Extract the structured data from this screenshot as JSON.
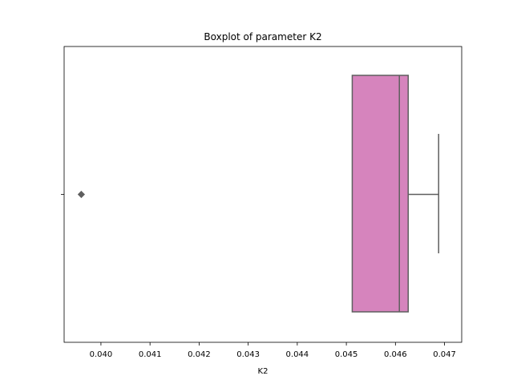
{
  "chart_data": {
    "type": "boxplot",
    "title": "Boxplot of parameter K2",
    "xlabel": "K2",
    "ylabel": "",
    "orientation": "horizontal",
    "xlim": [
      0.03925,
      0.04735
    ],
    "xticks": [
      0.04,
      0.041,
      0.042,
      0.043,
      0.044,
      0.045,
      0.046,
      0.047
    ],
    "xtick_labels": [
      "0.040",
      "0.041",
      "0.042",
      "0.043",
      "0.044",
      "0.045",
      "0.046",
      "0.047"
    ],
    "grid": false,
    "box": {
      "whisker_low": 0.04512,
      "q1": 0.04512,
      "median": 0.04608,
      "q3": 0.04626,
      "whisker_high": 0.04688,
      "outliers": [
        0.0396
      ],
      "fill_color": "#d684bd",
      "line_color": "#5f5f5f"
    }
  }
}
